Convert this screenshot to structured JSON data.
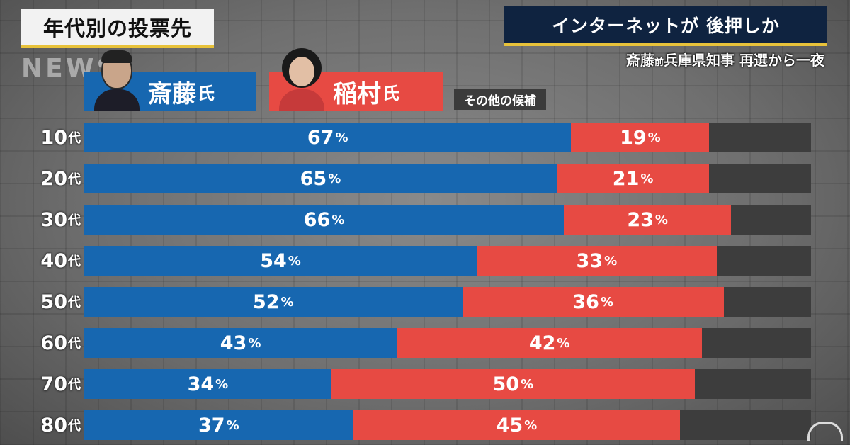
{
  "header": {
    "title": "年代別の投票先",
    "watermark": "NEWS",
    "headline": "インターネットが 後押しか",
    "subheadline_pre": "斎藤",
    "subheadline_small": "前",
    "subheadline_post": "兵庫県知事 再選から一夜"
  },
  "legend": {
    "candidate_a_name": "斎藤",
    "candidate_a_suffix": "氏",
    "candidate_b_name": "稲村",
    "candidate_b_suffix": "氏",
    "others_label": "その他の候補"
  },
  "colors": {
    "candidate_a": "#1767b0",
    "candidate_b": "#e74a43",
    "others": "#3d3d3d",
    "accent": "#e8c23a"
  },
  "pct_unit": "%",
  "age_suffix": "代",
  "chart_data": {
    "type": "bar",
    "orientation": "horizontal",
    "stacked": true,
    "title": "年代別の投票先",
    "categories": [
      "10",
      "20",
      "30",
      "40",
      "50",
      "60",
      "70",
      "80"
    ],
    "series": [
      {
        "name": "斎藤氏",
        "color": "#1767b0",
        "values": [
          67,
          65,
          66,
          54,
          52,
          43,
          34,
          37
        ]
      },
      {
        "name": "稲村氏",
        "color": "#e74a43",
        "values": [
          19,
          21,
          23,
          33,
          36,
          42,
          50,
          45
        ]
      },
      {
        "name": "その他の候補",
        "color": "#3d3d3d",
        "values": [
          14,
          14,
          11,
          13,
          12,
          15,
          16,
          18
        ]
      }
    ],
    "xlim": [
      0,
      100
    ],
    "grid": false
  }
}
